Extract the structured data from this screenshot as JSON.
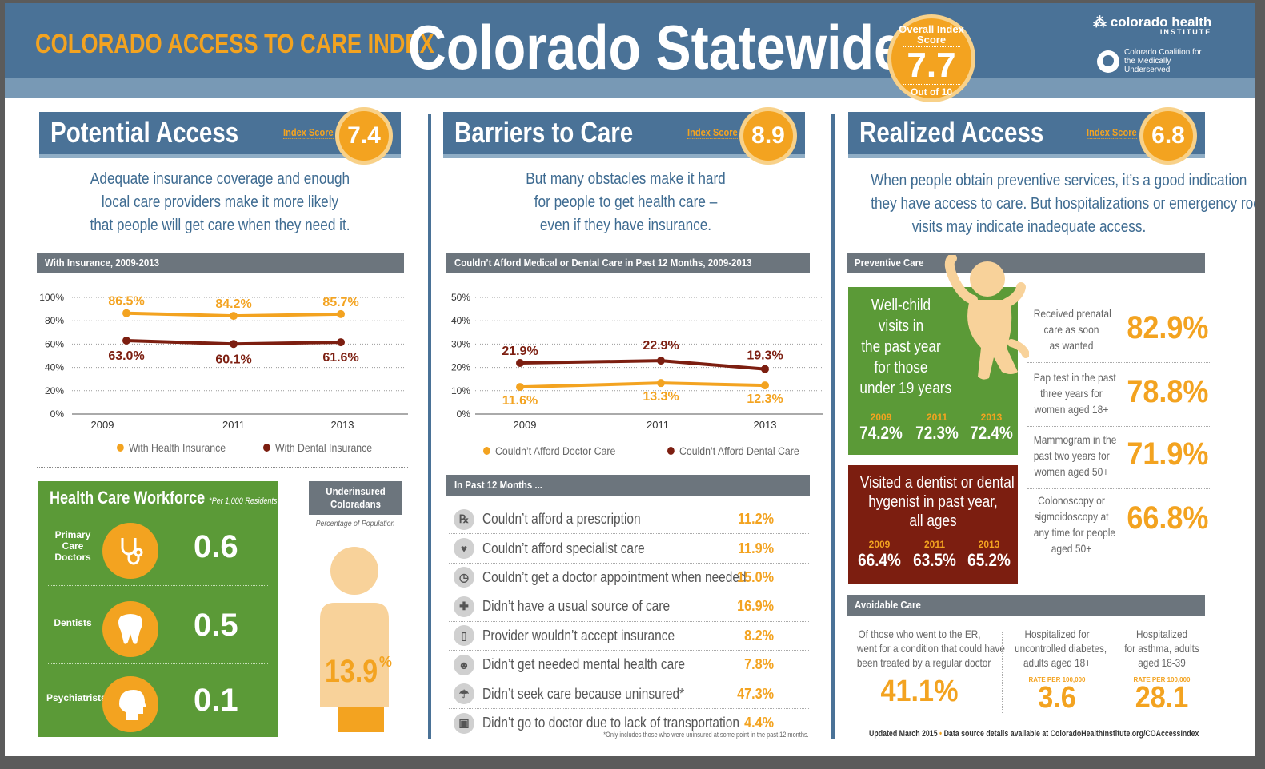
{
  "header": {
    "subtitle": "COLORADO ACCESS TO CARE INDEX",
    "title": "Colorado Statewide",
    "overall_label": "Overall Index Score",
    "overall_score": "7.7",
    "overall_out_of": "Out of 10",
    "logo_chi": "colorado health",
    "logo_chi_sub": "INSTITUTE",
    "logo_ccmu": "Colorado Coalition for the Medically Underserved"
  },
  "index_score_label": "Index Score",
  "potential": {
    "title": "Potential Access",
    "score": "7.4",
    "intro": [
      "Adequate insurance coverage and enough",
      "local care providers make it more likely",
      "that people will get care when they need it."
    ],
    "chart_title": "With Insurance, 2009-2013",
    "workforce_title": "Health Care Workforce",
    "workforce_note": "*Per 1,000 Residents",
    "workforce": [
      {
        "label": "Primary Care Doctors",
        "value": "0.6",
        "icon": "stethoscope-icon"
      },
      {
        "label": "Dentists",
        "value": "0.5",
        "icon": "tooth-icon"
      },
      {
        "label": "Psychiatrists",
        "value": "0.1",
        "icon": "head-icon"
      }
    ],
    "underinsured_title": "Underinsured Coloradans",
    "underinsured_sub": "Percentage of Population",
    "underinsured_value": "13.9",
    "underinsured_pct": "%"
  },
  "barriers": {
    "title": "Barriers to Care",
    "score": "8.9",
    "intro": [
      "But many obstacles make it hard",
      "for people to get health care –",
      "even if they have insurance."
    ],
    "chart_title": "Couldn’t Afford Medical or Dental Care in Past 12 Months, 2009-2013",
    "past12_title": "In Past 12 Months ...",
    "past12": [
      {
        "icon": "rx-icon",
        "glyph": "℞",
        "text": "Couldn’t afford a prescription",
        "value": "11.2%"
      },
      {
        "icon": "heart-icon",
        "glyph": "♥",
        "text": "Couldn’t afford specialist care",
        "value": "11.9%"
      },
      {
        "icon": "clock-icon",
        "glyph": "◷",
        "text": "Couldn’t get a doctor appointment when needed",
        "value": "15.0%"
      },
      {
        "icon": "medical-cross-icon",
        "glyph": "✚",
        "text": "Didn’t have a usual source of care",
        "value": "16.9%"
      },
      {
        "icon": "clipboard-icon",
        "glyph": "▯",
        "text": "Provider wouldn’t accept insurance",
        "value": "8.2%"
      },
      {
        "icon": "mind-icon",
        "glyph": "☻",
        "text": "Didn’t get needed mental health care",
        "value": "7.8%"
      },
      {
        "icon": "umbrella-icon",
        "glyph": "☂",
        "text": "Didn’t seek care because uninsured*",
        "value": "47.3%"
      },
      {
        "icon": "bus-icon",
        "glyph": "▣",
        "text": "Didn’t go to doctor due to lack of transportation",
        "value": "4.4%"
      }
    ],
    "footnote": "*Only includes those who were uninsured at some point in the past 12 months."
  },
  "realized": {
    "title": "Realized Access",
    "score": "6.8",
    "intro": [
      "When people obtain preventive services, it’s a good indication",
      "they have access to care. But hospitalizations or emergency room",
      "visits may indicate inadequate access."
    ],
    "preventive_title": "Preventive Care",
    "wellchild": {
      "title": [
        "Well-child",
        "visits in",
        "the past year",
        "for those",
        "under 19 years"
      ],
      "years": [
        "2009",
        "2011",
        "2013"
      ],
      "values": [
        "74.2%",
        "72.3%",
        "72.4%"
      ]
    },
    "dentist": {
      "title": [
        "Visited a dentist  or dental",
        "hygenist in past year,",
        "all ages"
      ],
      "years": [
        "2009",
        "2011",
        "2013"
      ],
      "values": [
        "66.4%",
        "63.5%",
        "65.2%"
      ]
    },
    "preventive": [
      {
        "desc": [
          "Received prenatal",
          "care as soon",
          "as wanted"
        ],
        "value": "82.9%"
      },
      {
        "desc": [
          "Pap test in the past",
          "three years for",
          "women aged 18+"
        ],
        "value": "78.8%"
      },
      {
        "desc": [
          "Mammogram in the",
          "past two years for",
          "women aged 50+"
        ],
        "value": "71.9%"
      },
      {
        "desc": [
          "Colonoscopy or",
          "sigmoidoscopy at",
          "any time for people",
          "aged 50+"
        ],
        "value": "66.8%"
      }
    ],
    "avoidable_title": "Avoidable Care",
    "avoidable": [
      {
        "desc": [
          "Of those who went to the ER,",
          "went for a condition that could have",
          "been treated by a regular doctor"
        ],
        "rate": "",
        "value": "41.1%"
      },
      {
        "desc": [
          "Hospitalized for",
          "uncontrolled diabetes,",
          "adults aged 18+"
        ],
        "rate": "RATE PER 100,000",
        "value": "3.6"
      },
      {
        "desc": [
          "Hospitalized",
          "for asthma, adults",
          "aged 18-39"
        ],
        "rate": "RATE PER 100,000",
        "value": "28.1"
      }
    ],
    "footer_updated": "Updated March 2015",
    "footer_bullet": "•",
    "footer_source": "Data source details available at ColoradoHealthInstitute.org/COAccessIndex"
  },
  "chart_data": [
    {
      "type": "line",
      "title": "With Insurance, 2009-2013",
      "x": [
        "2009",
        "2011",
        "2013"
      ],
      "yticks": [
        "0%",
        "20%",
        "40%",
        "60%",
        "80%",
        "100%"
      ],
      "ylim": [
        0,
        100
      ],
      "series": [
        {
          "name": "With Health Insurance",
          "values": [
            86.5,
            84.2,
            85.7
          ],
          "labels": [
            "86.5%",
            "84.2%",
            "85.7%"
          ],
          "color": "#f3a320"
        },
        {
          "name": "With Dental Insurance",
          "values": [
            63.0,
            60.1,
            61.6
          ],
          "labels": [
            "63.0%",
            "60.1%",
            "61.6%"
          ],
          "color": "#7c1e10"
        }
      ]
    },
    {
      "type": "line",
      "title": "Couldn’t Afford Medical or Dental Care in Past 12 Months, 2009-2013",
      "x": [
        "2009",
        "2011",
        "2013"
      ],
      "yticks": [
        "0%",
        "10%",
        "20%",
        "30%",
        "40%",
        "50%"
      ],
      "ylim": [
        0,
        50
      ],
      "series": [
        {
          "name": "Couldn’t Afford Doctor Care",
          "values": [
            11.6,
            13.3,
            12.3
          ],
          "labels": [
            "11.6%",
            "13.3%",
            "12.3%"
          ],
          "color": "#f3a320"
        },
        {
          "name": "Couldn’t Afford Dental Care",
          "values": [
            21.9,
            22.9,
            19.3
          ],
          "labels": [
            "21.9%",
            "22.9%",
            "19.3%"
          ],
          "color": "#7c1e10"
        }
      ]
    }
  ]
}
